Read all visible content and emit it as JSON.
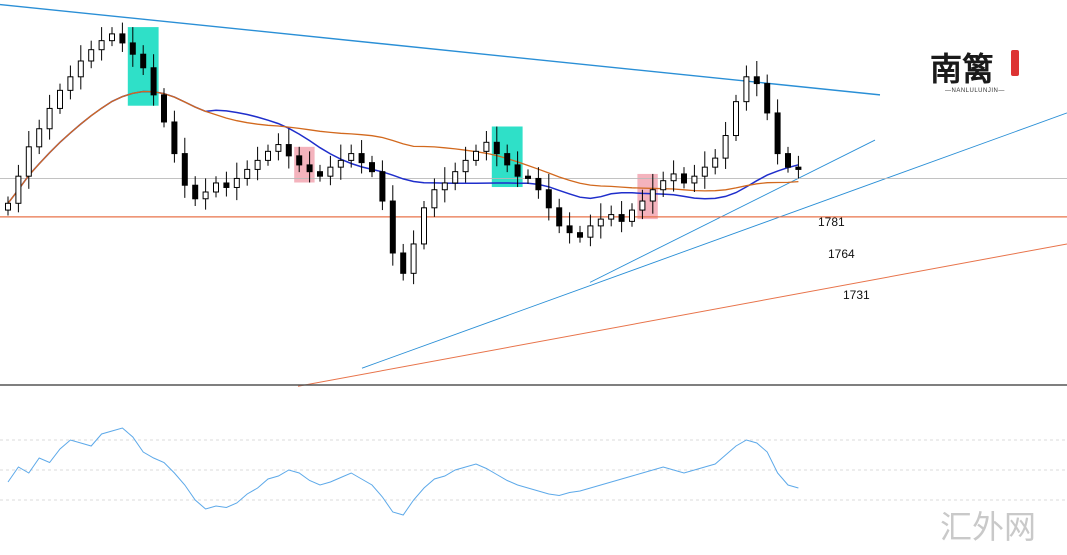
{
  "chart_data": {
    "type": "candlestick",
    "price_scale": {
      "min": 1690,
      "max": 1860
    },
    "closes": [
      1770,
      1782,
      1795,
      1803,
      1812,
      1820,
      1826,
      1833,
      1838,
      1842,
      1845,
      1841,
      1836,
      1830,
      1818,
      1806,
      1792,
      1778,
      1772,
      1775,
      1779,
      1777,
      1781,
      1785,
      1789,
      1793,
      1796,
      1791,
      1787,
      1784,
      1782,
      1786,
      1789,
      1792,
      1788,
      1784,
      1771,
      1748,
      1739,
      1752,
      1768,
      1776,
      1779,
      1784,
      1789,
      1793,
      1797,
      1792,
      1787,
      1782,
      1781,
      1776,
      1768,
      1760,
      1757,
      1755,
      1760,
      1763,
      1765,
      1762,
      1767,
      1771,
      1776,
      1780,
      1783,
      1779,
      1782,
      1786,
      1790,
      1800,
      1815,
      1826,
      1823,
      1810,
      1792,
      1786,
      1785
    ],
    "price_levels": [
      {
        "label": "1781"
      },
      {
        "label": "1764"
      },
      {
        "label": "1731"
      }
    ],
    "highlight_boxes": [
      {
        "color": "#2fe0c8",
        "from_index": 12,
        "to_index": 14
      },
      {
        "color": "#f4b3bd",
        "from_index": 28,
        "to_index": 29
      },
      {
        "color": "#2fe0c8",
        "from_index": 47,
        "to_index": 49
      },
      {
        "color": "#f4b3bd",
        "from_index": 61,
        "to_index": 62
      }
    ],
    "series_colors": {
      "candles": "#000000",
      "fast_ma": "#1f2ecb",
      "slow_ma": "#d2691e",
      "trendlines": "#2a8fd6",
      "support": "#e8734a",
      "oscillator": "#5da9e9"
    },
    "oscillator": {
      "range": [
        0,
        100
      ],
      "levels": [
        70,
        50,
        30
      ],
      "values": [
        42,
        52,
        48,
        58,
        55,
        64,
        70,
        68,
        66,
        74,
        76,
        78,
        72,
        62,
        58,
        55,
        48,
        40,
        30,
        24,
        26,
        25,
        28,
        34,
        38,
        44,
        46,
        50,
        48,
        43,
        40,
        42,
        45,
        48,
        44,
        40,
        32,
        22,
        20,
        30,
        38,
        44,
        46,
        50,
        52,
        54,
        51,
        47,
        43,
        40,
        38,
        36,
        34,
        33,
        35,
        36,
        38,
        40,
        42,
        44,
        46,
        48,
        50,
        52,
        50,
        48,
        50,
        52,
        54,
        60,
        66,
        70,
        68,
        62,
        48,
        40,
        38
      ]
    },
    "axes": {
      "x_ticks": [],
      "y_ticks": []
    },
    "grid": false
  },
  "logo": {
    "mark": "南篱",
    "subtext": "—NANLULUNJIN—"
  },
  "watermark": "汇外网"
}
